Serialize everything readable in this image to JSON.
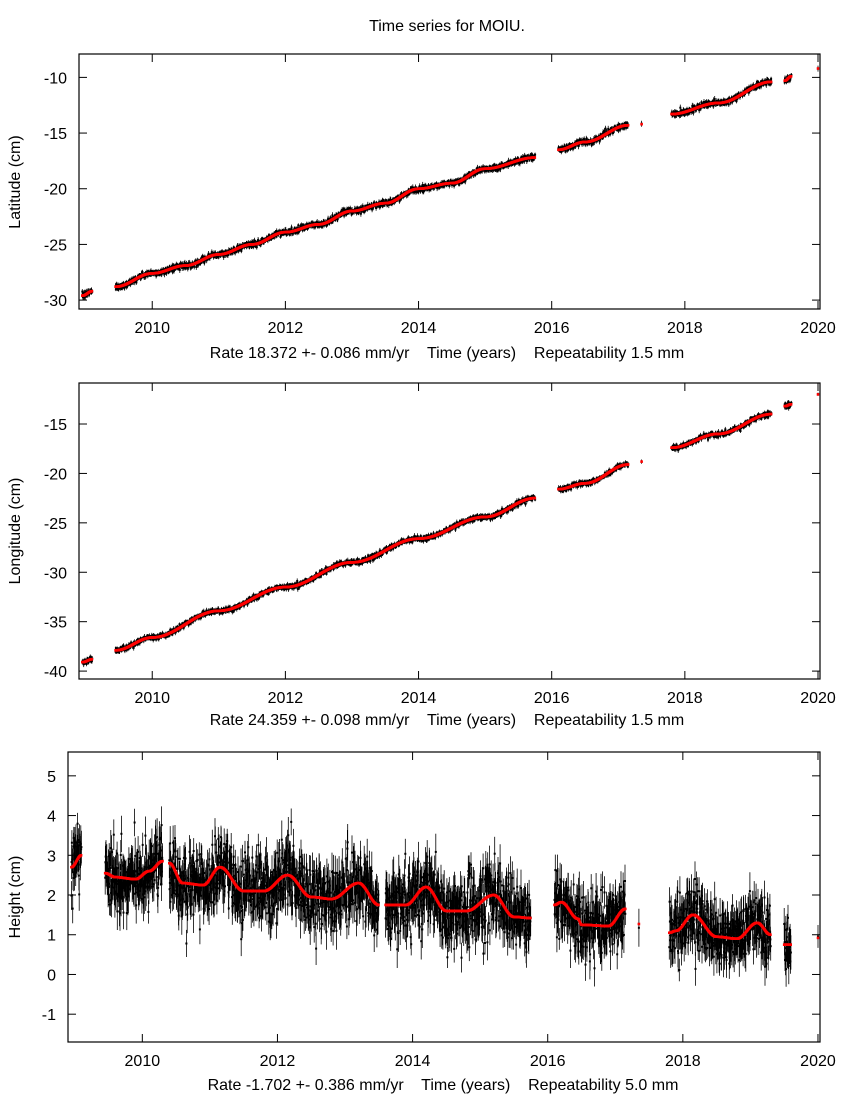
{
  "chart_data": [
    {
      "type": "scatter",
      "title": "Time series for MOIU.",
      "ylabel": "Latitude (cm)",
      "xlabel": "Rate 18.372 +- 0.086 mm/yr    Time (years)    Repeatability 1.5 mm",
      "xlim": [
        2008.9,
        2020.03
      ],
      "ylim": [
        -30.8,
        -7.9
      ],
      "xticks": [
        "2010",
        "2012",
        "2014",
        "2016",
        "2018",
        "2020"
      ],
      "yticks": [
        "-30",
        "-25",
        "-20",
        "-15",
        "-10"
      ],
      "grid": false,
      "series_colors": {
        "data": "#000000",
        "model": "#ff0000"
      },
      "model_segments": [
        [
          [
            2008.95,
            -29.6
          ],
          [
            2009.1,
            -29.2
          ]
        ],
        [
          [
            2009.45,
            -28.8
          ],
          [
            2010.0,
            -27.6
          ],
          [
            2010.5,
            -26.9
          ],
          [
            2011.0,
            -25.9
          ],
          [
            2011.5,
            -25.0
          ],
          [
            2012.0,
            -23.9
          ],
          [
            2012.5,
            -23.2
          ],
          [
            2013.0,
            -22.0
          ],
          [
            2013.5,
            -21.3
          ],
          [
            2014.0,
            -20.0
          ],
          [
            2014.5,
            -19.5
          ],
          [
            2015.0,
            -18.2
          ],
          [
            2015.75,
            -17.2
          ]
        ],
        [
          [
            2016.1,
            -16.5
          ],
          [
            2016.5,
            -15.8
          ],
          [
            2017.15,
            -14.3
          ]
        ],
        [
          [
            2017.35,
            -14.2
          ]
        ],
        [
          [
            2017.8,
            -13.3
          ],
          [
            2018.5,
            -12.3
          ],
          [
            2019.3,
            -10.4
          ]
        ],
        [
          [
            2019.5,
            -10.3
          ],
          [
            2019.6,
            -9.9
          ]
        ],
        [
          [
            2020.0,
            -9.2
          ]
        ]
      ]
    },
    {
      "type": "scatter",
      "ylabel": "Longitude (cm)",
      "xlabel": "Rate 24.359 +- 0.098 mm/yr    Time (years)    Repeatability 1.5 mm",
      "xlim": [
        2008.9,
        2020.03
      ],
      "ylim": [
        -40.8,
        -10.85
      ],
      "xticks": [
        "2010",
        "2012",
        "2014",
        "2016",
        "2018",
        "2020"
      ],
      "yticks": [
        "-40",
        "-35",
        "-30",
        "-25",
        "-20",
        "-15"
      ],
      "grid": false,
      "series_colors": {
        "data": "#000000",
        "model": "#ff0000"
      },
      "model_segments": [
        [
          [
            2008.95,
            -39.1
          ],
          [
            2009.1,
            -38.8
          ]
        ],
        [
          [
            2009.45,
            -37.9
          ],
          [
            2010.0,
            -36.6
          ],
          [
            2011.0,
            -33.9
          ],
          [
            2012.0,
            -31.5
          ],
          [
            2013.0,
            -29.0
          ],
          [
            2014.0,
            -26.6
          ],
          [
            2015.0,
            -24.4
          ],
          [
            2015.75,
            -22.5
          ]
        ],
        [
          [
            2016.1,
            -21.6
          ],
          [
            2016.5,
            -21.0
          ],
          [
            2017.15,
            -19.1
          ]
        ],
        [
          [
            2017.35,
            -18.8
          ]
        ],
        [
          [
            2017.8,
            -17.4
          ],
          [
            2018.5,
            -16.0
          ],
          [
            2019.3,
            -14.0
          ]
        ],
        [
          [
            2019.5,
            -13.2
          ],
          [
            2019.6,
            -13.0
          ]
        ],
        [
          [
            2020.0,
            -12.0
          ]
        ]
      ]
    },
    {
      "type": "scatter",
      "ylabel": "Height (cm)",
      "xlabel": "Rate -1.702 +- 0.386 mm/yr    Time (years)    Repeatability 5.0 mm",
      "xlim": [
        2008.9,
        2020.03
      ],
      "ylim": [
        -1.7,
        5.6
      ],
      "xticks": [
        "2010",
        "2012",
        "2014",
        "2016",
        "2018",
        "2020"
      ],
      "yticks": [
        "-1",
        "0",
        "1",
        "2",
        "3",
        "4",
        "5"
      ],
      "grid": false,
      "series_colors": {
        "data": "#000000",
        "model": "#ff0000"
      },
      "model_segments": [
        [
          [
            2008.95,
            2.7
          ],
          [
            2009.1,
            3.0
          ]
        ],
        [
          [
            2009.45,
            2.55
          ],
          [
            2009.6,
            2.45
          ],
          [
            2009.9,
            2.4
          ],
          [
            2010.1,
            2.6
          ],
          [
            2010.3,
            2.85
          ]
        ],
        [
          [
            2010.4,
            2.8
          ],
          [
            2010.6,
            2.3
          ],
          [
            2010.9,
            2.25
          ],
          [
            2011.15,
            2.7
          ],
          [
            2011.5,
            2.1
          ],
          [
            2011.8,
            2.1
          ],
          [
            2012.15,
            2.5
          ],
          [
            2012.5,
            1.95
          ],
          [
            2012.8,
            1.9
          ],
          [
            2013.2,
            2.3
          ],
          [
            2013.5,
            1.75
          ]
        ],
        [
          [
            2013.6,
            1.75
          ],
          [
            2013.9,
            1.75
          ],
          [
            2014.2,
            2.2
          ],
          [
            2014.5,
            1.6
          ],
          [
            2014.8,
            1.6
          ],
          [
            2015.2,
            2.0
          ],
          [
            2015.5,
            1.45
          ],
          [
            2015.75,
            1.42
          ]
        ],
        [
          [
            2016.1,
            1.75
          ],
          [
            2016.2,
            1.82
          ],
          [
            2016.45,
            1.4
          ],
          [
            2016.5,
            1.25
          ],
          [
            2016.9,
            1.22
          ],
          [
            2017.15,
            1.65
          ]
        ],
        [
          [
            2017.35,
            1.27
          ]
        ],
        [
          [
            2017.8,
            1.05
          ],
          [
            2017.9,
            1.1
          ],
          [
            2018.15,
            1.5
          ],
          [
            2018.5,
            0.95
          ],
          [
            2018.8,
            0.9
          ],
          [
            2019.1,
            1.3
          ],
          [
            2019.3,
            1.0
          ]
        ],
        [
          [
            2019.5,
            0.75
          ],
          [
            2019.6,
            0.75
          ]
        ],
        [
          [
            2020.0,
            0.92
          ]
        ]
      ]
    }
  ]
}
